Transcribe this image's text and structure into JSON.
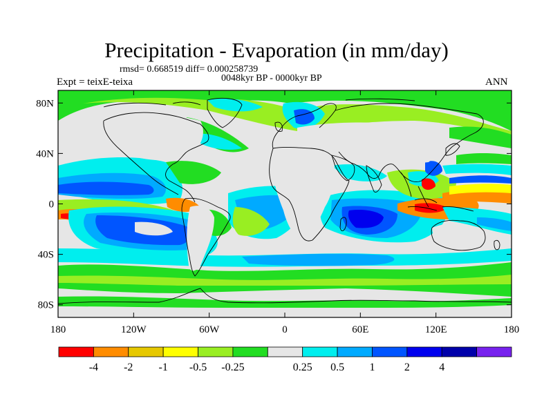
{
  "figure": {
    "title": "Precipitation - Evaporation (in mm/day)",
    "stats": "rmsd= 0.668519 diff= 0.000258739",
    "period": "0048kyr BP - 0000kyr BP",
    "experiment": "Expt = teixE-teixa",
    "season": "ANN"
  },
  "map": {
    "type": "contour-map",
    "projection": "cylindrical equidistant",
    "lon_range": [
      -180,
      180
    ],
    "lat_range": [
      -90,
      90
    ],
    "lat_ticks": [
      {
        "value": 80,
        "label": "80N"
      },
      {
        "value": 40,
        "label": "40N"
      },
      {
        "value": 0,
        "label": "0"
      },
      {
        "value": -40,
        "label": "40S"
      },
      {
        "value": -80,
        "label": "80S"
      }
    ],
    "lon_ticks": [
      {
        "value": -180,
        "label": "180"
      },
      {
        "value": -120,
        "label": "120W"
      },
      {
        "value": -60,
        "label": "60W"
      },
      {
        "value": 0,
        "label": "0"
      },
      {
        "value": 60,
        "label": "60E"
      },
      {
        "value": 120,
        "label": "120E"
      },
      {
        "value": 180,
        "label": "180"
      }
    ]
  },
  "colorbar": {
    "colors": [
      "#ff0000",
      "#ff8c00",
      "#e6c800",
      "#ffff00",
      "#99ee22",
      "#22dd22",
      "#e6e6e6",
      "#00eeee",
      "#00aaff",
      "#0055ff",
      "#0000ee",
      "#0000aa",
      "#7722ee"
    ],
    "labels": [
      "-4",
      "-2",
      "-1",
      "-0.5",
      "-0.25",
      "0.25",
      "0.5",
      "1",
      "2",
      "4"
    ]
  }
}
